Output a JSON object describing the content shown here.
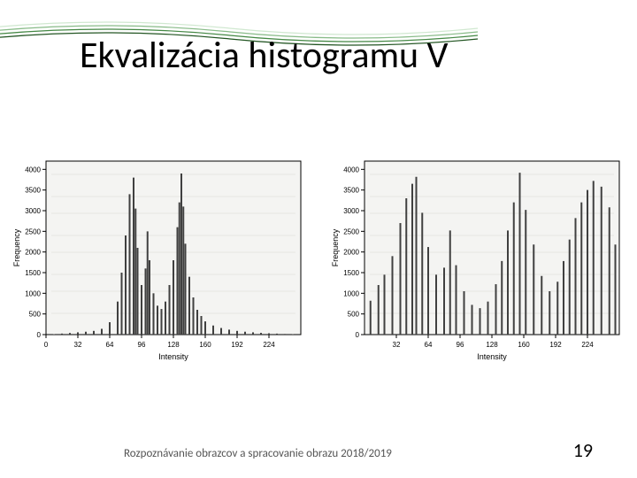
{
  "slide": {
    "title": "Ekvalizácia histogramu V",
    "footer": "Rozpoznávanie obrazcov a spracovanie obrazu 2018/2019",
    "page_number": "19",
    "title_fontsize": 42,
    "title_color": "#000000",
    "background_color": "#ffffff",
    "footer_fontsize": 13,
    "footer_color": "#555555",
    "pagenum_fontsize": 22
  },
  "decoration": {
    "curve_colors": [
      "#d0e8d0",
      "#88bb88",
      "#448844",
      "#225522"
    ],
    "stroke_width": 1.2
  },
  "chart_left": {
    "type": "histogram",
    "xlabel": "Intensity",
    "ylabel": "Frequency",
    "xlim": [
      0,
      256
    ],
    "ylim": [
      0,
      4200
    ],
    "xticks": [
      0,
      32,
      64,
      96,
      128,
      160,
      192,
      224
    ],
    "yticks": [
      0,
      500,
      1000,
      1500,
      2000,
      2500,
      3000,
      3500,
      4000
    ],
    "axis_color": "#000000",
    "grid_color": "#b0b0b0",
    "bar_color": "#404040",
    "label_fontsize": 9,
    "tick_fontsize": 8,
    "grayscale_scan": true,
    "data": [
      {
        "x": 0,
        "y": 0
      },
      {
        "x": 8,
        "y": 10
      },
      {
        "x": 16,
        "y": 25
      },
      {
        "x": 24,
        "y": 40
      },
      {
        "x": 32,
        "y": 55
      },
      {
        "x": 40,
        "y": 70
      },
      {
        "x": 48,
        "y": 90
      },
      {
        "x": 56,
        "y": 140
      },
      {
        "x": 64,
        "y": 300
      },
      {
        "x": 72,
        "y": 800
      },
      {
        "x": 76,
        "y": 1500
      },
      {
        "x": 80,
        "y": 2400
      },
      {
        "x": 84,
        "y": 3400
      },
      {
        "x": 88,
        "y": 3800
      },
      {
        "x": 90,
        "y": 3050
      },
      {
        "x": 92,
        "y": 2100
      },
      {
        "x": 96,
        "y": 1200
      },
      {
        "x": 100,
        "y": 1600
      },
      {
        "x": 102,
        "y": 2500
      },
      {
        "x": 104,
        "y": 1800
      },
      {
        "x": 108,
        "y": 1000
      },
      {
        "x": 112,
        "y": 700
      },
      {
        "x": 116,
        "y": 620
      },
      {
        "x": 120,
        "y": 800
      },
      {
        "x": 124,
        "y": 1200
      },
      {
        "x": 128,
        "y": 1800
      },
      {
        "x": 132,
        "y": 2600
      },
      {
        "x": 134,
        "y": 3200
      },
      {
        "x": 136,
        "y": 3900
      },
      {
        "x": 138,
        "y": 3100
      },
      {
        "x": 140,
        "y": 2200
      },
      {
        "x": 144,
        "y": 1400
      },
      {
        "x": 148,
        "y": 900
      },
      {
        "x": 152,
        "y": 600
      },
      {
        "x": 156,
        "y": 450
      },
      {
        "x": 160,
        "y": 320
      },
      {
        "x": 168,
        "y": 220
      },
      {
        "x": 176,
        "y": 160
      },
      {
        "x": 184,
        "y": 120
      },
      {
        "x": 192,
        "y": 90
      },
      {
        "x": 200,
        "y": 70
      },
      {
        "x": 208,
        "y": 55
      },
      {
        "x": 216,
        "y": 42
      },
      {
        "x": 224,
        "y": 32
      },
      {
        "x": 232,
        "y": 24
      },
      {
        "x": 240,
        "y": 16
      },
      {
        "x": 248,
        "y": 8
      },
      {
        "x": 256,
        "y": 0
      }
    ]
  },
  "chart_right": {
    "type": "histogram",
    "xlabel": "Intensity",
    "ylabel": "Frequency",
    "xlim": [
      0,
      256
    ],
    "ylim": [
      0,
      4200
    ],
    "xticks": [
      32,
      64,
      96,
      128,
      160,
      192,
      224
    ],
    "yticks": [
      0,
      500,
      1000,
      1500,
      2000,
      2500,
      3000,
      3500,
      4000
    ],
    "axis_color": "#000000",
    "grid_color": "#b0b0b0",
    "bar_color": "#404040",
    "label_fontsize": 9,
    "tick_fontsize": 8,
    "grayscale_scan": true,
    "data": [
      {
        "x": 6,
        "y": 820
      },
      {
        "x": 14,
        "y": 1200
      },
      {
        "x": 20,
        "y": 1450
      },
      {
        "x": 28,
        "y": 1900
      },
      {
        "x": 36,
        "y": 2700
      },
      {
        "x": 42,
        "y": 3300
      },
      {
        "x": 48,
        "y": 3650
      },
      {
        "x": 52,
        "y": 3820
      },
      {
        "x": 58,
        "y": 2950
      },
      {
        "x": 64,
        "y": 2120
      },
      {
        "x": 72,
        "y": 1450
      },
      {
        "x": 80,
        "y": 1620
      },
      {
        "x": 86,
        "y": 2520
      },
      {
        "x": 92,
        "y": 1680
      },
      {
        "x": 100,
        "y": 1050
      },
      {
        "x": 108,
        "y": 720
      },
      {
        "x": 116,
        "y": 640
      },
      {
        "x": 124,
        "y": 800
      },
      {
        "x": 132,
        "y": 1220
      },
      {
        "x": 138,
        "y": 1780
      },
      {
        "x": 144,
        "y": 2520
      },
      {
        "x": 150,
        "y": 3200
      },
      {
        "x": 156,
        "y": 3920
      },
      {
        "x": 162,
        "y": 3020
      },
      {
        "x": 170,
        "y": 2180
      },
      {
        "x": 178,
        "y": 1420
      },
      {
        "x": 186,
        "y": 1050
      },
      {
        "x": 194,
        "y": 1280
      },
      {
        "x": 200,
        "y": 1780
      },
      {
        "x": 206,
        "y": 2300
      },
      {
        "x": 212,
        "y": 2820
      },
      {
        "x": 218,
        "y": 3200
      },
      {
        "x": 224,
        "y": 3500
      },
      {
        "x": 230,
        "y": 3720
      },
      {
        "x": 238,
        "y": 3580
      },
      {
        "x": 246,
        "y": 3080
      },
      {
        "x": 252,
        "y": 2180
      }
    ]
  }
}
